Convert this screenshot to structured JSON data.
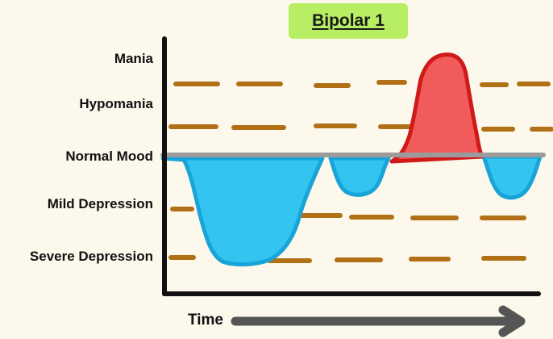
{
  "title": "Bipolar 1",
  "y_levels": [
    "Mania",
    "Hypomania",
    "Normal Mood",
    "Mild Depression",
    "Severe Depression"
  ],
  "x_label": "Time",
  "colors": {
    "title_bg": "#b8ee63",
    "elevated_fill": "#f25b5b",
    "elevated_stroke": "#d01a1a",
    "depressed_fill": "#33c4f0",
    "depressed_stroke": "#18a4d8",
    "baseline": "#9b9b9b",
    "dash": "#b27016",
    "axis": "#111111",
    "arrow": "#555555"
  },
  "icons": [
    "right-arrow-icon"
  ]
}
